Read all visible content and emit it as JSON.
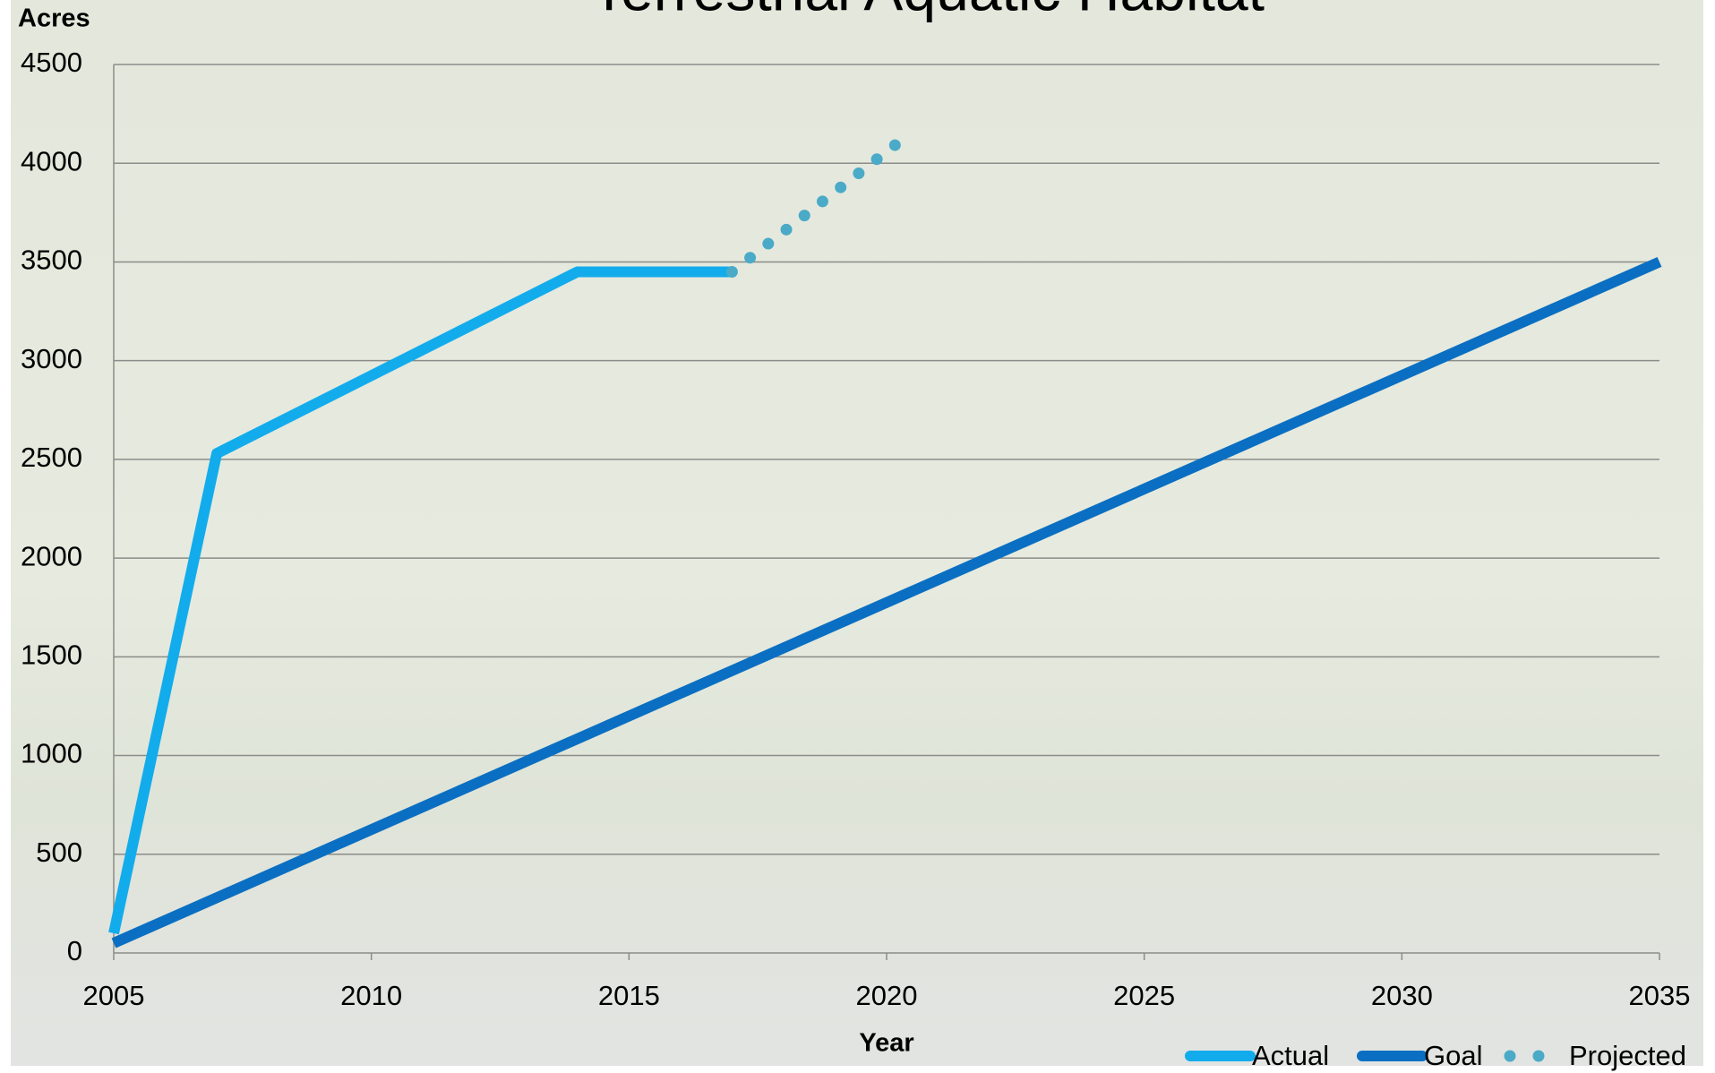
{
  "chart_data": {
    "type": "line",
    "title": "Terrestrial Aquatic Habitat",
    "y_label": "Acres",
    "x_label": "Year",
    "xlim": [
      2005,
      2035
    ],
    "xticks": [
      2005,
      2010,
      2015,
      2020,
      2025,
      2030,
      2035
    ],
    "ylim": [
      0,
      4500
    ],
    "yticks": [
      0,
      500,
      1000,
      1500,
      2000,
      2500,
      3000,
      3500,
      4000,
      4500
    ],
    "grid": true,
    "series": [
      {
        "name": "Actual",
        "color": "#12acec",
        "style": "solid",
        "x": [
          2005,
          2007,
          2014,
          2017
        ],
        "values": [
          100,
          2530,
          3450,
          3450
        ]
      },
      {
        "name": "Goal",
        "color": "#0a6fc2",
        "style": "solid",
        "x": [
          2005,
          2035
        ],
        "values": [
          50,
          3500
        ]
      },
      {
        "name": "Projected",
        "color": "#4aaac8",
        "style": "dotted",
        "x": [
          2017,
          2020.5
        ],
        "values": [
          3450,
          4160
        ]
      }
    ]
  }
}
